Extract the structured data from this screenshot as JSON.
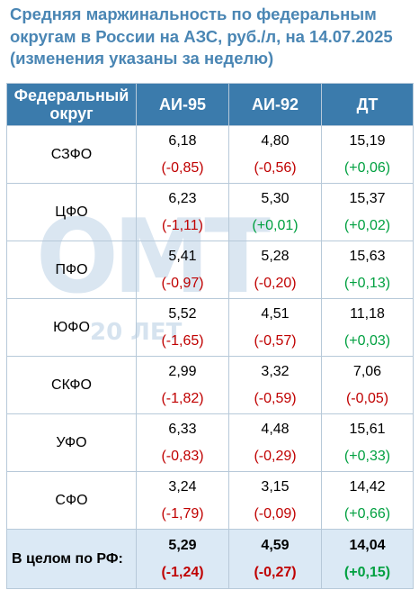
{
  "title": {
    "line1": "Средняя маржинальность по федеральным",
    "line2": "округам в России на АЗС, руб./л, на 14.07.2025",
    "line3": "(изменения указаны за неделю)"
  },
  "watermark": {
    "letters": "ОМТ",
    "sub": "20 ЛЕТ"
  },
  "table": {
    "headers": {
      "district_line1": "Федеральный",
      "district_line2": "округ",
      "ai95": "АИ-95",
      "ai92": "АИ-92",
      "dt": "ДТ"
    },
    "rows": [
      {
        "name": "СЗФО",
        "ai95": "6,18",
        "ai95_d": "(-0,85)",
        "ai92": "4,80",
        "ai92_d": "(-0,56)",
        "dt": "15,19",
        "dt_d": "(+0,06)"
      },
      {
        "name": "ЦФО",
        "ai95": "6,23",
        "ai95_d": "(-1,11)",
        "ai92": "5,30",
        "ai92_d": "(+0,01)",
        "dt": "15,37",
        "dt_d": "(+0,02)"
      },
      {
        "name": "ПФО",
        "ai95": "5,41",
        "ai95_d": "(-0,97)",
        "ai92": "5,28",
        "ai92_d": "(-0,20)",
        "dt": "15,63",
        "dt_d": "(+0,13)"
      },
      {
        "name": "ЮФО",
        "ai95": "5,52",
        "ai95_d": "(-1,65)",
        "ai92": "4,51",
        "ai92_d": "(-0,57)",
        "dt": "11,18",
        "dt_d": "(+0,03)"
      },
      {
        "name": "СКФО",
        "ai95": "2,99",
        "ai95_d": "(-1,82)",
        "ai92": "3,32",
        "ai92_d": "(-0,59)",
        "dt": "7,06",
        "dt_d": "(-0,05)"
      },
      {
        "name": "УФО",
        "ai95": "6,33",
        "ai95_d": "(-0,83)",
        "ai92": "4,48",
        "ai92_d": "(-0,29)",
        "dt": "15,61",
        "dt_d": "(+0,33)"
      },
      {
        "name": "СФО",
        "ai95": "3,24",
        "ai95_d": "(-1,79)",
        "ai92": "3,15",
        "ai92_d": "(-0,09)",
        "dt": "14,42",
        "dt_d": "(+0,66)"
      }
    ],
    "total": {
      "name": "В целом по РФ:",
      "ai95": "5,29",
      "ai95_d": "(-1,24)",
      "ai92": "4,59",
      "ai92_d": "(-0,27)",
      "dt": "14,04",
      "dt_d": "(+0,15)"
    }
  },
  "colors": {
    "header_bg": "#3b7bac",
    "title": "#4a86b4",
    "negative": "#c00000",
    "positive": "#00a040",
    "total_bg": "#dbe9f5"
  }
}
